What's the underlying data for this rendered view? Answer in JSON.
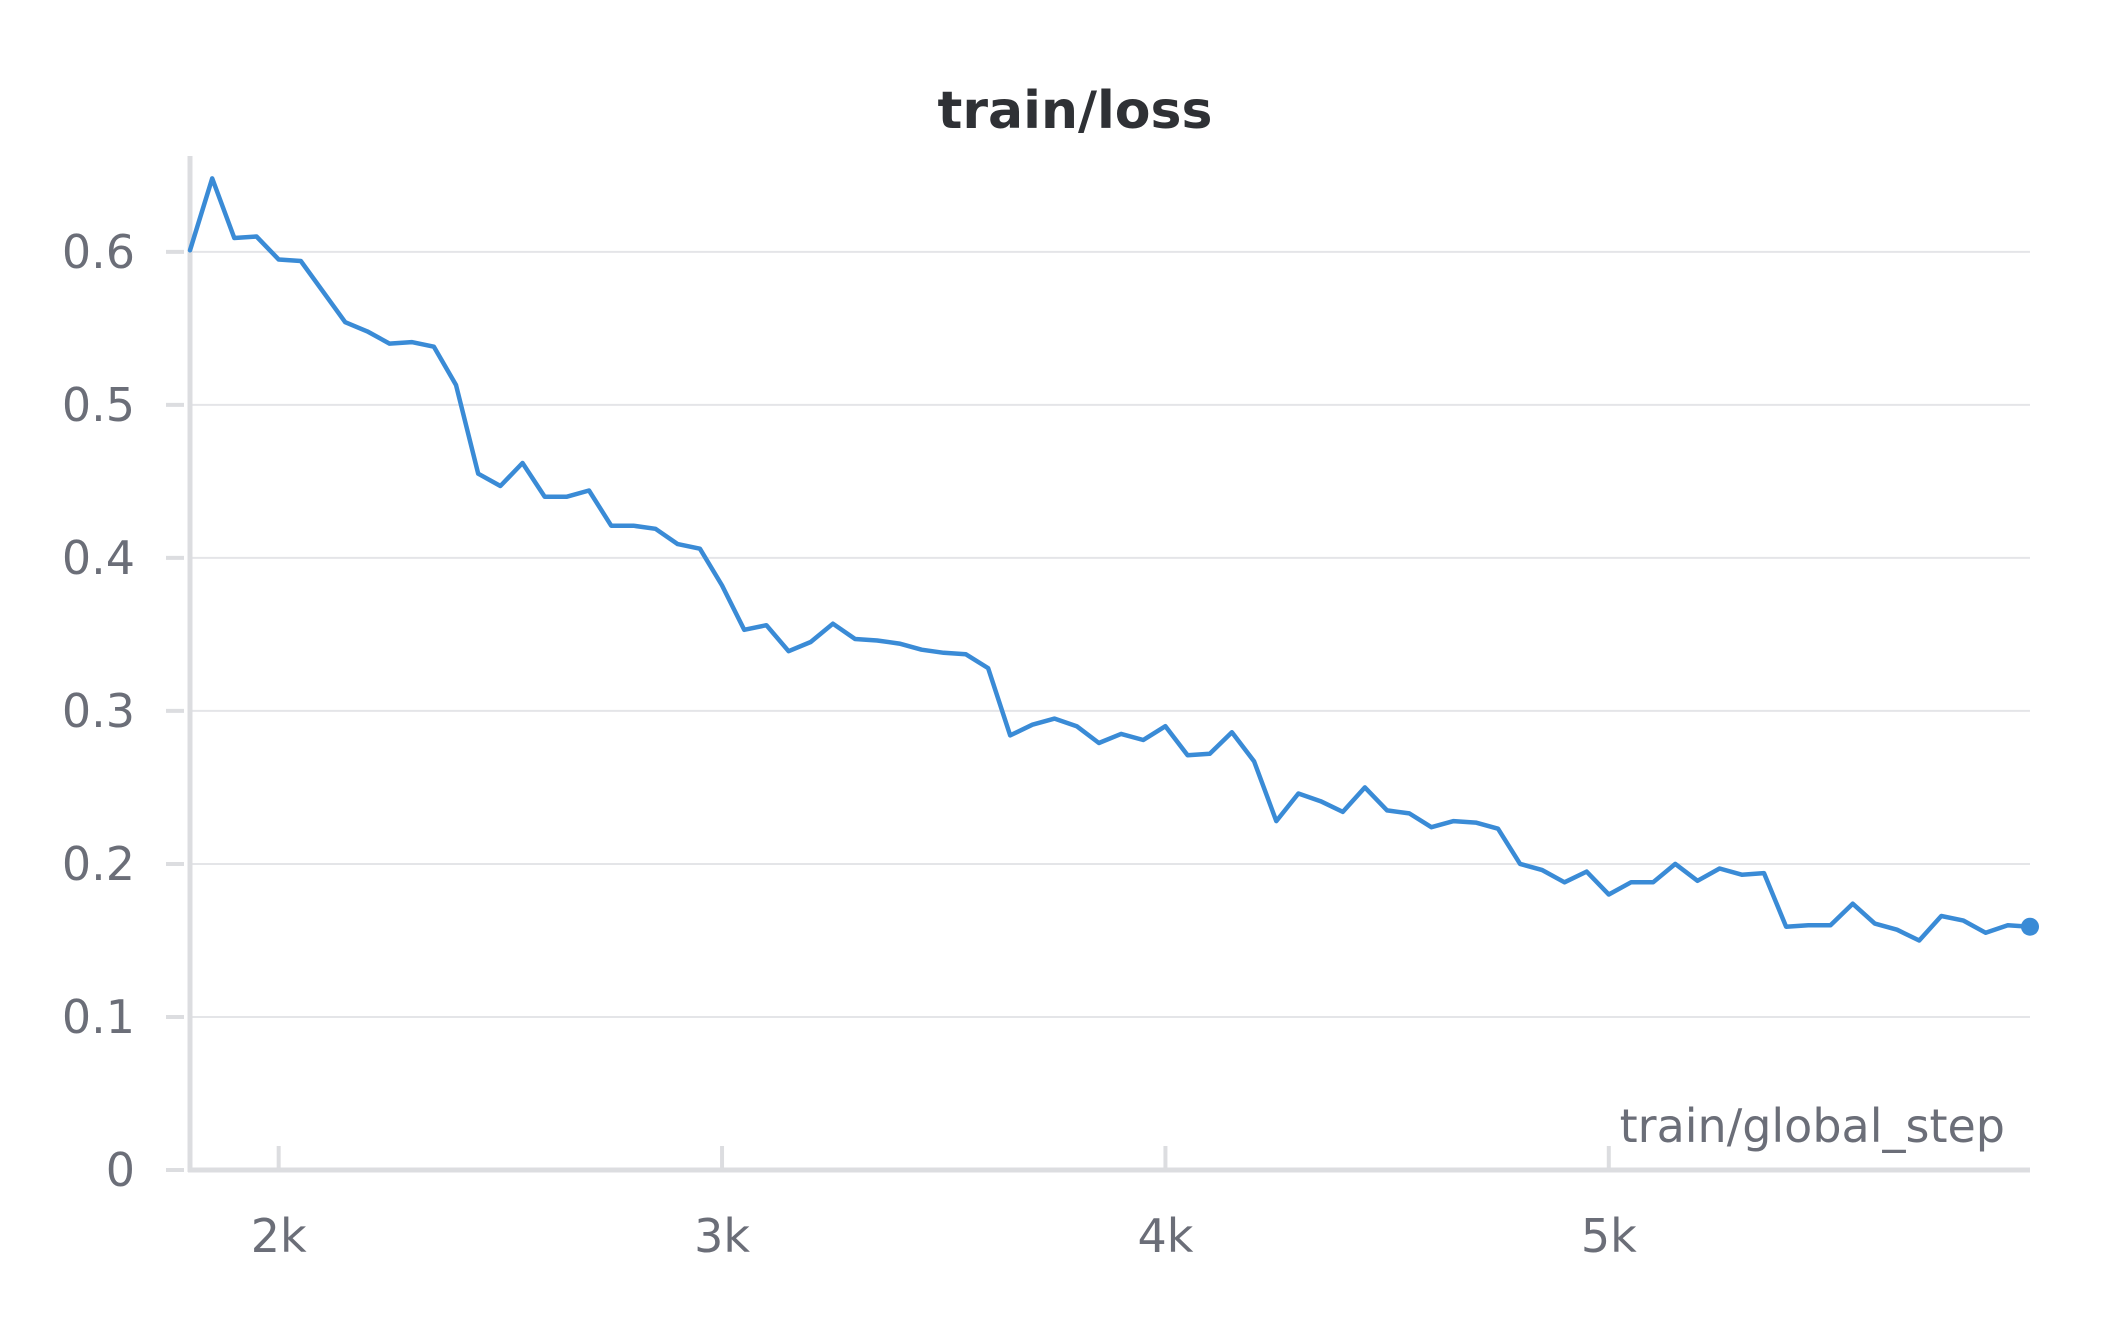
{
  "chart_data": {
    "type": "line",
    "title": "train/loss",
    "xlabel": "train/global_step",
    "ylabel": "",
    "xlim": [
      1800,
      5950
    ],
    "ylim": [
      0,
      0.66
    ],
    "x_ticks": [
      2000,
      3000,
      4000,
      5000
    ],
    "x_tick_labels": [
      "2k",
      "3k",
      "4k",
      "5k"
    ],
    "y_ticks": [
      0,
      0.1,
      0.2,
      0.3,
      0.4,
      0.5,
      0.6
    ],
    "y_tick_labels": [
      "0",
      "0.1",
      "0.2",
      "0.3",
      "0.4",
      "0.5",
      "0.6"
    ],
    "grid": true,
    "legend": "none",
    "colors": {
      "line": "#3a8bd6"
    },
    "series": [
      {
        "x": [
          1800,
          1850,
          1900,
          1950,
          2000,
          2050,
          2100,
          2150,
          2200,
          2250,
          2300,
          2350,
          2400,
          2450,
          2500,
          2550,
          2600,
          2650,
          2700,
          2750,
          2800,
          2850,
          2900,
          2950,
          3000,
          3050,
          3100,
          3150,
          3200,
          3250,
          3300,
          3350,
          3400,
          3450,
          3500,
          3550,
          3600,
          3650,
          3700,
          3750,
          3800,
          3850,
          3900,
          3950,
          4000,
          4050,
          4100,
          4150,
          4200,
          4250,
          4300,
          4350,
          4400,
          4450,
          4500,
          4550,
          4600,
          4650,
          4700,
          4750,
          4800,
          4850,
          4900,
          4950,
          5000,
          5050,
          5100,
          5150,
          5200,
          5250,
          5300,
          5350,
          5400,
          5450,
          5500,
          5550,
          5600,
          5650,
          5700,
          5750,
          5800,
          5850,
          5900,
          5950
        ],
        "values": [
          0.601,
          0.648,
          0.609,
          0.61,
          0.595,
          0.594,
          0.574,
          0.554,
          0.548,
          0.54,
          0.541,
          0.538,
          0.513,
          0.455,
          0.447,
          0.462,
          0.44,
          0.44,
          0.444,
          0.421,
          0.421,
          0.419,
          0.409,
          0.406,
          0.382,
          0.353,
          0.356,
          0.339,
          0.345,
          0.357,
          0.347,
          0.346,
          0.344,
          0.34,
          0.338,
          0.337,
          0.328,
          0.284,
          0.291,
          0.295,
          0.29,
          0.279,
          0.285,
          0.281,
          0.29,
          0.271,
          0.272,
          0.286,
          0.267,
          0.228,
          0.246,
          0.241,
          0.234,
          0.25,
          0.235,
          0.233,
          0.224,
          0.228,
          0.227,
          0.223,
          0.2,
          0.196,
          0.188,
          0.195,
          0.18,
          0.188,
          0.188,
          0.2,
          0.189,
          0.197,
          0.193,
          0.194,
          0.159,
          0.16,
          0.16,
          0.174,
          0.161,
          0.157,
          0.15,
          0.166,
          0.163,
          0.155,
          0.16,
          0.159
        ]
      }
    ]
  }
}
